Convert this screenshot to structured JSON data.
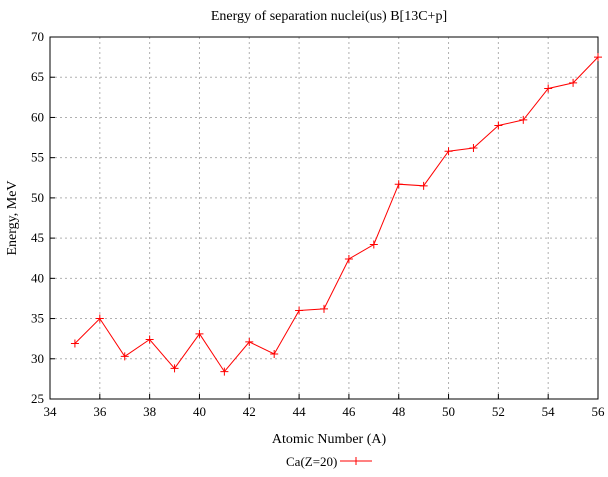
{
  "chart_data": {
    "type": "line",
    "title": "Energy of separation nuclei(us) B[13C+p]",
    "xlabel": "Atomic Number (A)",
    "ylabel": "Energy, MeV",
    "xlim": [
      34,
      56
    ],
    "ylim": [
      25,
      70
    ],
    "xticks": [
      34,
      36,
      38,
      40,
      42,
      44,
      46,
      48,
      50,
      52,
      54,
      56
    ],
    "yticks": [
      25,
      30,
      35,
      40,
      45,
      50,
      55,
      60,
      65,
      70
    ],
    "grid": true,
    "legend_position": "bottom-center",
    "series": [
      {
        "name": "Ca(Z=20)",
        "color": "#ff0000",
        "marker": "plus",
        "x": [
          35,
          36,
          37,
          38,
          39,
          40,
          41,
          42,
          43,
          44,
          45,
          46,
          47,
          48,
          49,
          50,
          51,
          52,
          53,
          54,
          55,
          56
        ],
        "y": [
          31.9,
          35.0,
          30.3,
          32.4,
          28.8,
          33.1,
          28.4,
          32.1,
          30.6,
          36.0,
          36.2,
          42.4,
          44.2,
          51.7,
          51.5,
          55.8,
          56.2,
          59.0,
          59.7,
          63.6,
          64.3,
          67.5
        ]
      }
    ]
  }
}
